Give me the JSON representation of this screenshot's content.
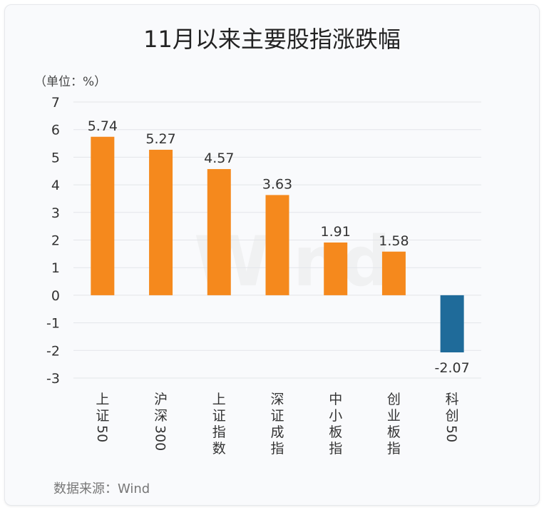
{
  "header": {
    "title": "11月以来主要股指涨跌幅",
    "unit": "（单位：%）"
  },
  "footer": {
    "source": "数据来源：Wind"
  },
  "watermark": "Wind",
  "colors": {
    "positive": "#f5891d",
    "negative": "#1f6b9a",
    "grid": "#e3e5e9",
    "text": "#333333"
  },
  "chart_data": {
    "type": "bar",
    "title": "11月以来主要股指涨跌幅",
    "ylabel": "（单位：%）",
    "xlabel": "",
    "ylim": [
      -3,
      7
    ],
    "yticks": [
      7,
      6,
      5,
      4,
      3,
      2,
      1,
      0,
      -1,
      -2,
      -3
    ],
    "grid": true,
    "categories": [
      "上证50",
      "沪深300",
      "上证指数",
      "深证成指",
      "中小板指",
      "创业板指",
      "科创50"
    ],
    "values": [
      5.74,
      5.27,
      4.57,
      3.63,
      1.91,
      1.58,
      -2.07
    ],
    "value_labels": [
      "5.74",
      "5.27",
      "4.57",
      "3.63",
      "1.91",
      "1.58",
      "-2.07"
    ]
  }
}
